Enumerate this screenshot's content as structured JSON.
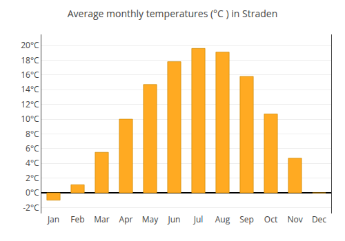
{
  "chart_data": {
    "type": "bar",
    "title": "Average monthly temperatures (°C ) in Straden",
    "categories": [
      "Jan",
      "Feb",
      "Mar",
      "Apr",
      "May",
      "Jun",
      "Jul",
      "Aug",
      "Sep",
      "Oct",
      "Nov",
      "Dec"
    ],
    "values": [
      -1.0,
      1.1,
      5.5,
      10.0,
      14.7,
      17.8,
      19.6,
      19.1,
      15.8,
      10.7,
      4.7,
      0.0
    ],
    "color": "#FFAA22",
    "ylim": [
      -2.8,
      21.5
    ],
    "yticks": [
      {
        "value": -2,
        "label": "-2°C"
      },
      {
        "value": 0,
        "label": "0°C"
      },
      {
        "value": 2,
        "label": "2°C"
      },
      {
        "value": 4,
        "label": "4°C"
      },
      {
        "value": 6,
        "label": "6°C"
      },
      {
        "value": 8,
        "label": "8°C"
      },
      {
        "value": 10,
        "label": "10°C"
      },
      {
        "value": 12,
        "label": "12°C"
      },
      {
        "value": 14,
        "label": "14°C"
      },
      {
        "value": 16,
        "label": "16°C"
      },
      {
        "value": 18,
        "label": "18°C"
      },
      {
        "value": 20,
        "label": "20°C"
      }
    ],
    "grid": true
  }
}
